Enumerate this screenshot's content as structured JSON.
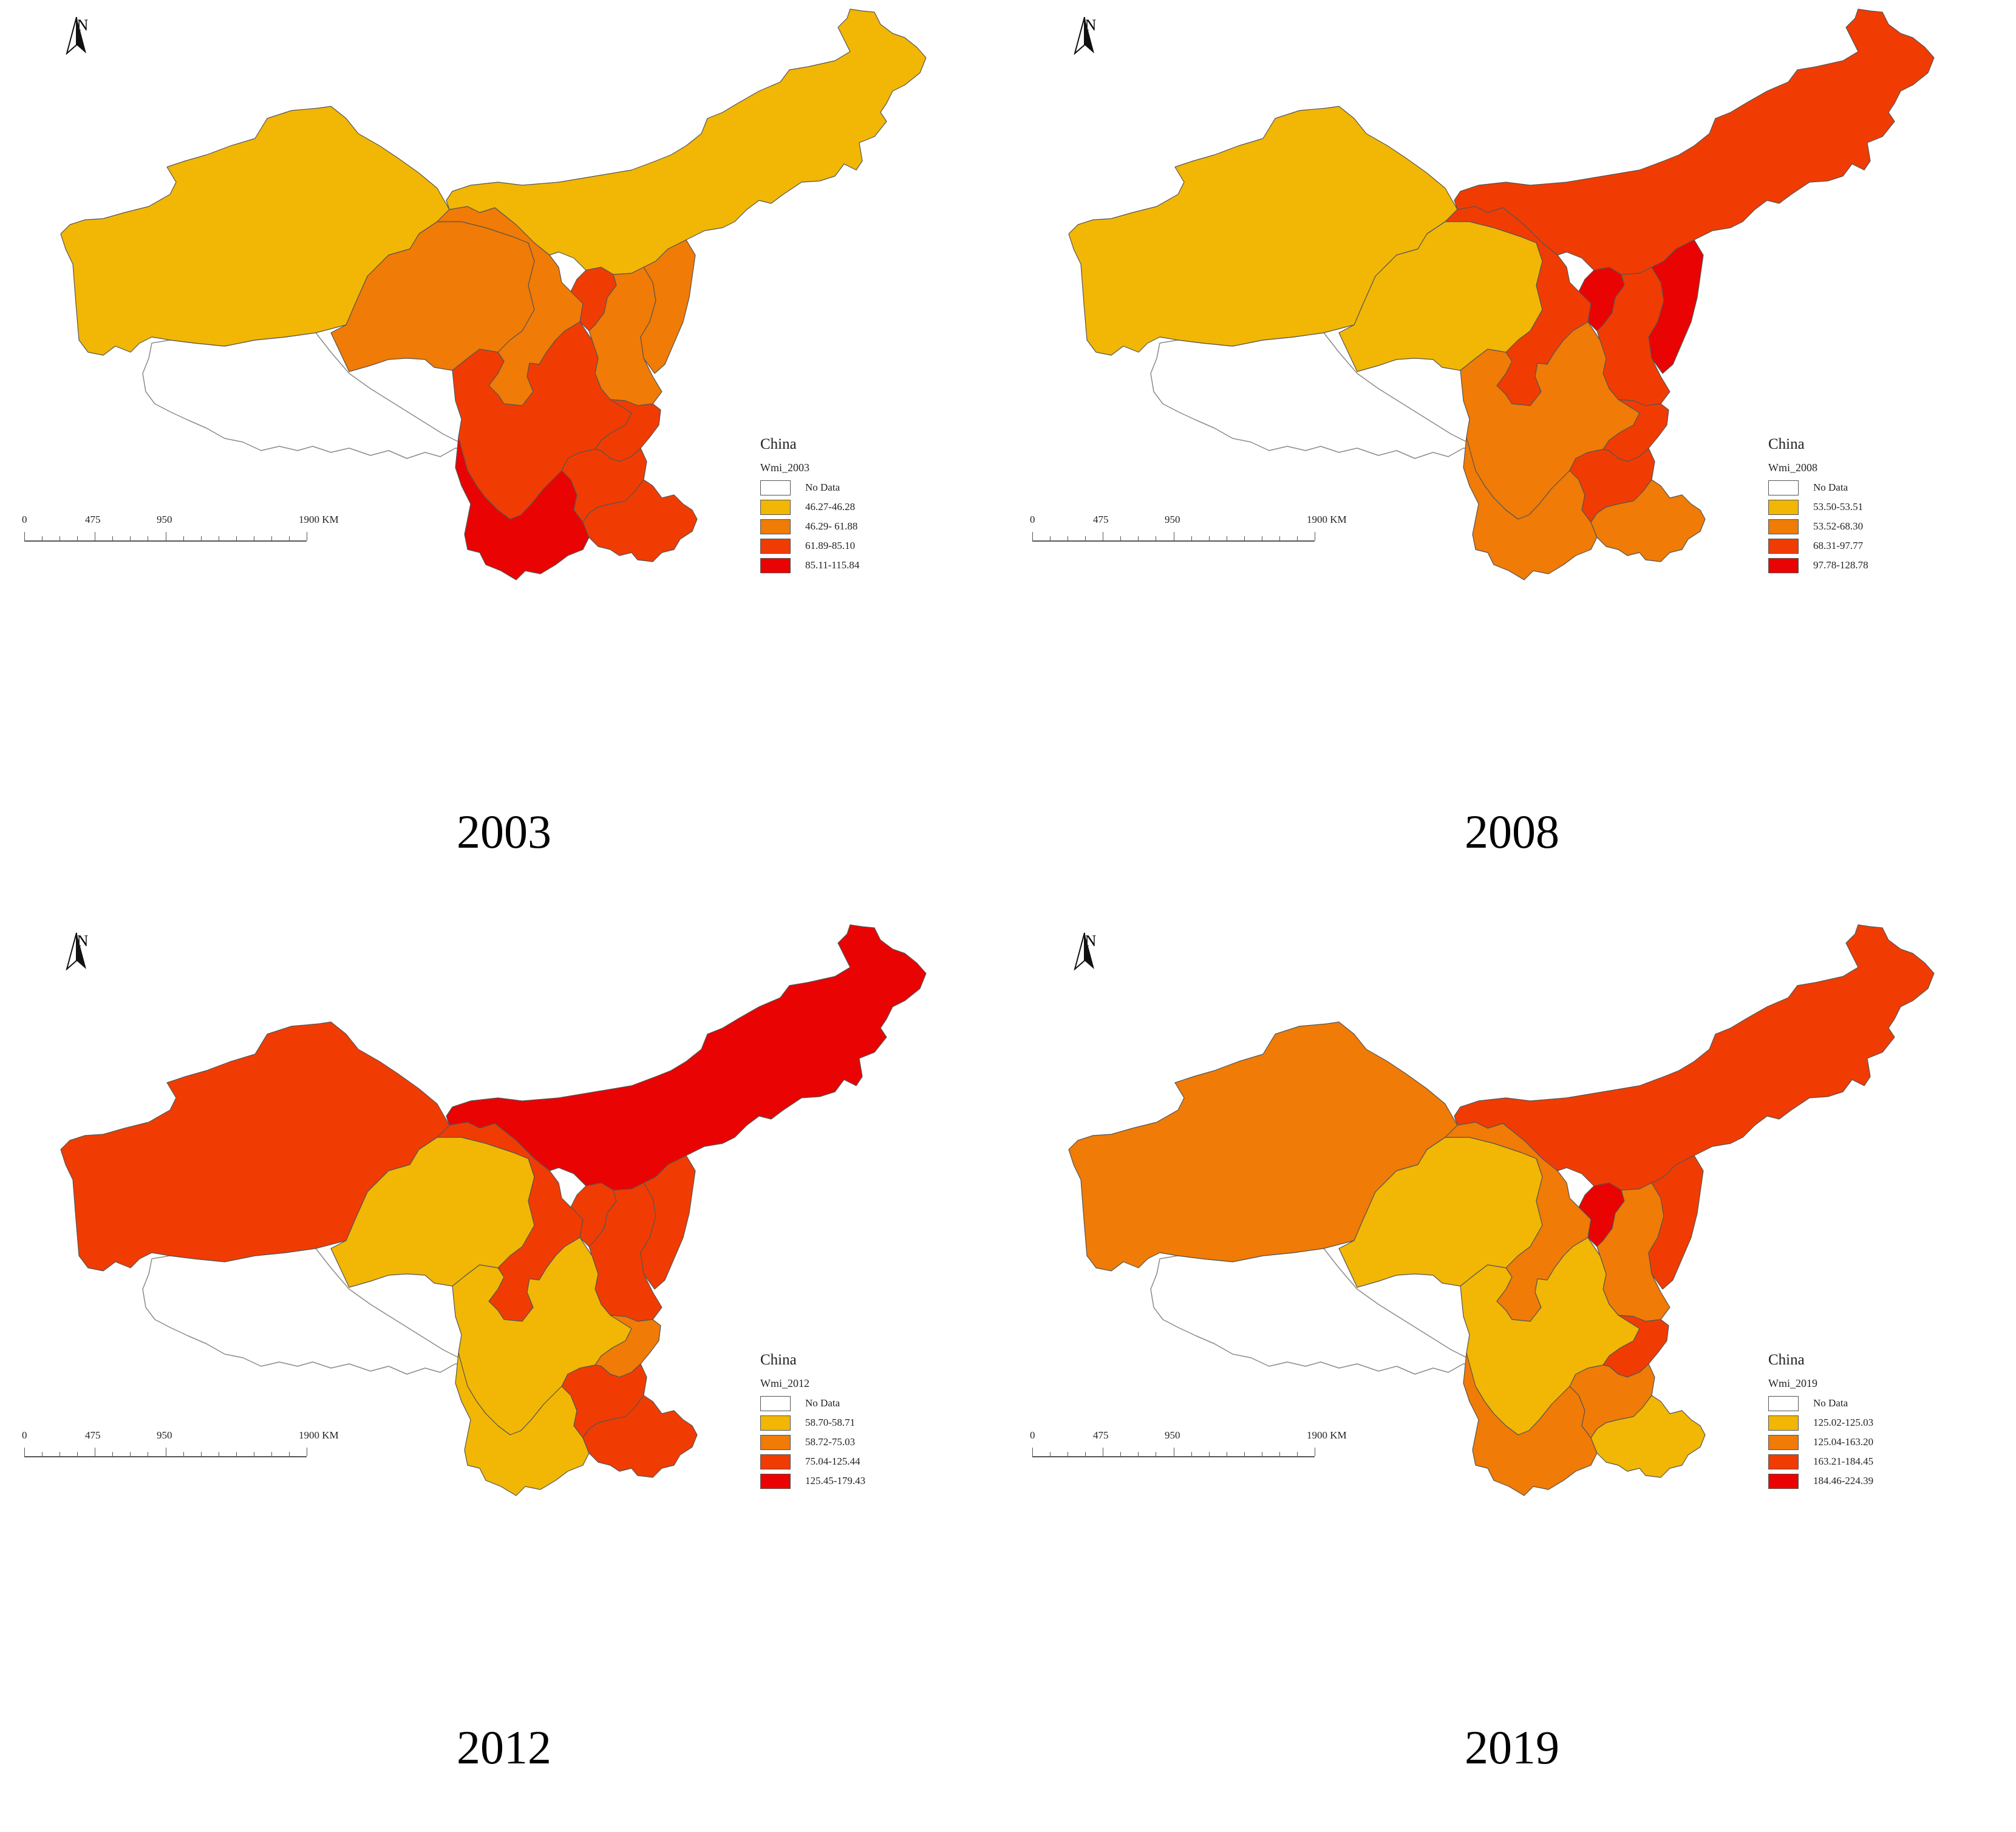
{
  "palette": {
    "no_data": "#ffffff",
    "class1": "#f2b705",
    "class2": "#f07b06",
    "class3": "#f03c03",
    "class4": "#ea0303",
    "border": "#555555"
  },
  "north_arrow": "N",
  "scale": {
    "labels": [
      "0",
      "475",
      "950",
      "1900 KM"
    ]
  },
  "legend_title": "China",
  "no_data_label": "No Data",
  "panels": [
    {
      "year": "2003",
      "legend_field": "Wmi_2003",
      "classes": [
        "46.27-46.28",
        "46.29- 61.88",
        "61.89-85.10",
        "85.11-115.84"
      ],
      "region_classes": {
        "xinjiang": 1,
        "tibet": 0,
        "qinghai": 2,
        "gansu": 2,
        "inner_mongolia": 1,
        "ningxia": 3,
        "shaanxi": 2,
        "shanxi": 2,
        "sichuan": 3,
        "chongqing": 3,
        "yunnan": 4,
        "guizhou": 3,
        "guangxi": 3
      }
    },
    {
      "year": "2008",
      "legend_field": "Wmi_2008",
      "classes": [
        "53.50-53.51",
        "53.52-68.30",
        "68.31-97.77",
        "97.78-128.78"
      ],
      "region_classes": {
        "xinjiang": 1,
        "tibet": 0,
        "qinghai": 1,
        "gansu": 3,
        "inner_mongolia": 3,
        "ningxia": 4,
        "shaanxi": 3,
        "shanxi": 4,
        "sichuan": 2,
        "chongqing": 3,
        "yunnan": 2,
        "guizhou": 3,
        "guangxi": 2
      }
    },
    {
      "year": "2012",
      "legend_field": "Wmi_2012",
      "classes": [
        "58.70-58.71",
        "58.72-75.03",
        "75.04-125.44",
        "125.45-179.43"
      ],
      "region_classes": {
        "xinjiang": 3,
        "tibet": 0,
        "qinghai": 1,
        "gansu": 3,
        "inner_mongolia": 4,
        "ningxia": 3,
        "shaanxi": 3,
        "shanxi": 3,
        "sichuan": 1,
        "chongqing": 2,
        "yunnan": 1,
        "guizhou": 3,
        "guangxi": 3
      }
    },
    {
      "year": "2019",
      "legend_field": "Wmi_2019",
      "classes": [
        "125.02-125.03",
        "125.04-163.20",
        "163.21-184.45",
        "184.46-224.39"
      ],
      "region_classes": {
        "xinjiang": 2,
        "tibet": 0,
        "qinghai": 1,
        "gansu": 2,
        "inner_mongolia": 3,
        "ningxia": 4,
        "shaanxi": 2,
        "shanxi": 3,
        "sichuan": 1,
        "chongqing": 3,
        "yunnan": 2,
        "guizhou": 2,
        "guangxi": 1
      }
    }
  ]
}
